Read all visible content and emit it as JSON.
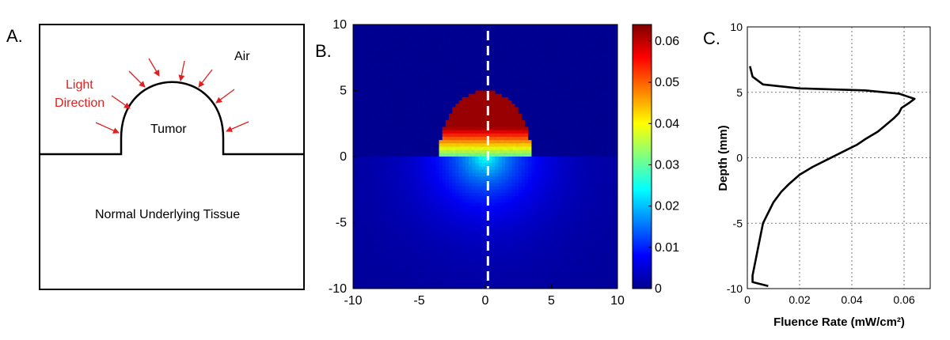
{
  "panels": {
    "a": {
      "label": "A.",
      "air": "Air",
      "light_direction_line1": "Light",
      "light_direction_line2": "Direction",
      "tumor": "Tumor",
      "tissue": "Normal Underlying Tissue"
    },
    "b": {
      "label": "B."
    },
    "c": {
      "label": "C."
    }
  },
  "chart_data": [
    {
      "type": "heatmap",
      "panel": "B",
      "x_ticks": [
        "-10",
        "-5",
        "0",
        "5",
        "10"
      ],
      "y_ticks": [
        "10",
        "5",
        "0",
        "-5",
        "-10"
      ],
      "xlim": [
        -10,
        10
      ],
      "ylim": [
        -10,
        10
      ],
      "colorbar_ticks": [
        "0.06",
        "0.05",
        "0.04",
        "0.03",
        "0.02",
        "0.01",
        "0"
      ],
      "colorbar_range": [
        0,
        0.064
      ],
      "colormap": "jet",
      "tumor_dome": {
        "center_x": 0,
        "base_y": 0,
        "radius_x": 3.5,
        "height": 5.0,
        "peak_value": 0.062,
        "base_value": 0.03
      },
      "tissue_region": {
        "surface_value": 0.025,
        "deep_value": 0.002
      },
      "profile_line_x": 0.2,
      "profile_line_color": "#ffffff"
    },
    {
      "type": "line",
      "panel": "C",
      "xlabel": "Fluence Rate (mW/cm²)",
      "ylabel": "Depth (mm)",
      "x_ticks": [
        "0",
        "0.02",
        "0.04",
        "0.06"
      ],
      "y_ticks": [
        "10",
        "5",
        "0",
        "-5",
        "-10"
      ],
      "xlim": [
        0,
        0.07
      ],
      "ylim": [
        -10,
        10
      ],
      "grid": true,
      "series": [
        {
          "color": "#000000",
          "points": [
            [
              0.001,
              7.0
            ],
            [
              0.002,
              6.2
            ],
            [
              0.006,
              5.6
            ],
            [
              0.02,
              5.3
            ],
            [
              0.045,
              5.15
            ],
            [
              0.058,
              4.9
            ],
            [
              0.064,
              4.5
            ],
            [
              0.062,
              4.2
            ],
            [
              0.059,
              3.8
            ],
            [
              0.058,
              3.4
            ],
            [
              0.056,
              3.0
            ],
            [
              0.053,
              2.5
            ],
            [
              0.05,
              2.0
            ],
            [
              0.045,
              1.4
            ],
            [
              0.042,
              1.0
            ],
            [
              0.038,
              0.6
            ],
            [
              0.034,
              0.2
            ],
            [
              0.03,
              -0.2
            ],
            [
              0.025,
              -0.7
            ],
            [
              0.02,
              -1.3
            ],
            [
              0.016,
              -2.0
            ],
            [
              0.013,
              -2.6
            ],
            [
              0.01,
              -3.4
            ],
            [
              0.008,
              -4.2
            ],
            [
              0.006,
              -5.0
            ],
            [
              0.005,
              -6.0
            ],
            [
              0.004,
              -7.0
            ],
            [
              0.003,
              -8.0
            ],
            [
              0.002,
              -9.0
            ],
            [
              0.002,
              -9.5
            ],
            [
              0.008,
              -9.8
            ]
          ]
        }
      ]
    }
  ]
}
